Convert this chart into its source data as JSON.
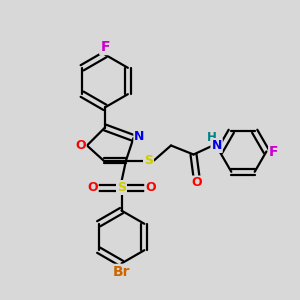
{
  "bg_color": "#d8d8d8",
  "line_color": "#000000",
  "bond_width": 1.6,
  "atom_colors": {
    "F_top": "#cc00cc",
    "F_right": "#cc00cc",
    "O": "#ff0000",
    "N": "#0000ee",
    "S": "#cccc00",
    "Br": "#cc6600",
    "H": "#008080",
    "C": "#000000"
  },
  "font_size": 9
}
